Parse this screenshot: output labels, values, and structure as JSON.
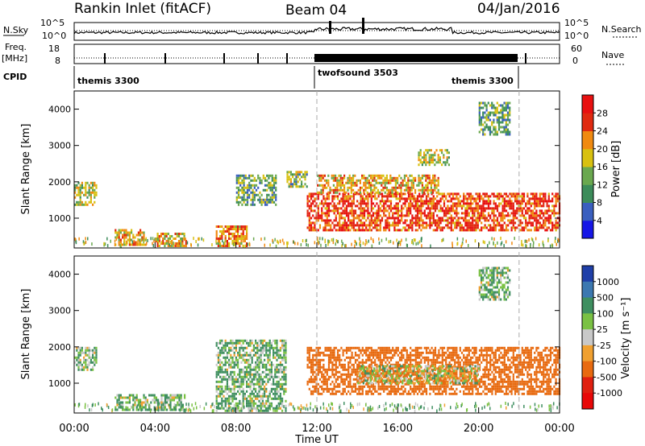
{
  "header": {
    "title": "Rankin Inlet (fitACF)",
    "beam": "Beam 04",
    "date": "04/Jan/2016"
  },
  "nsky_panel": {
    "left_label": "N.Sky",
    "left_ticks": [
      "10^5",
      "10^0"
    ],
    "right_label": "N.Search",
    "right_ticks": [
      "10^5",
      "10^0"
    ]
  },
  "freq_panel": {
    "left_label_1": "Freq.",
    "left_label_2": "[MHz]",
    "left_ticks": [
      "18",
      "8"
    ],
    "right_label": "Nave",
    "right_ticks": [
      "60",
      "0"
    ]
  },
  "cpid_panel": {
    "label": "CPID",
    "programs": [
      {
        "name": "themis 3300",
        "start_hour": 0,
        "end_hour": 12.0
      },
      {
        "name": "twofsound 3503",
        "start_hour": 12.0,
        "end_hour": 22.0
      },
      {
        "name": "themis 3300",
        "start_hour": 22.0,
        "end_hour": 24
      }
    ]
  },
  "power_panel": {
    "ylabel": "Slant Range [km]",
    "yticks": [
      "1000",
      "2000",
      "3000",
      "4000"
    ],
    "colorbar_label": "Power [dB]",
    "colorbar_ticks": [
      "4",
      "8",
      "12",
      "16",
      "20",
      "24",
      "28"
    ],
    "colorbar_colors": [
      "#1616e6",
      "#3a5fbf",
      "#3c8c5a",
      "#6aa84f",
      "#d8c010",
      "#f08a10",
      "#e02a10",
      "#e81010"
    ]
  },
  "velocity_panel": {
    "ylabel": "Slant Range [km]",
    "yticks": [
      "1000",
      "2000",
      "3000",
      "4000"
    ],
    "colorbar_label": "Velocity  [m s⁻¹]",
    "colorbar_ticks": [
      "1000",
      "500",
      "100",
      "25",
      "-25",
      "-100",
      "-500",
      "-1000"
    ],
    "colorbar_colors": [
      "#1f3fa8",
      "#3c78b0",
      "#3f8f60",
      "#7ac143",
      "#c8c8c8",
      "#f0a030",
      "#e86a10",
      "#e02010",
      "#e80808"
    ]
  },
  "x_axis": {
    "label": "Time UT",
    "ticks": [
      "00:00",
      "04:00",
      "08:00",
      "12:00",
      "16:00",
      "20:00",
      "00:00"
    ]
  },
  "chart_data": {
    "type": "heatmap",
    "x_range_hours": [
      0,
      24
    ],
    "y_range_km": [
      180,
      4500
    ],
    "grid": false,
    "power_patches": [
      {
        "t0": 0.0,
        "t1": 1.1,
        "r0": 1400,
        "r1": 2000,
        "value": 16
      },
      {
        "t0": 2.0,
        "t1": 3.5,
        "r0": 300,
        "r1": 700,
        "value": 20
      },
      {
        "t0": 4.0,
        "t1": 5.5,
        "r0": 250,
        "r1": 600,
        "value": 20
      },
      {
        "t0": 7.0,
        "t1": 8.5,
        "r0": 250,
        "r1": 800,
        "value": 22
      },
      {
        "t0": 8.0,
        "t1": 10.0,
        "r0": 1400,
        "r1": 2200,
        "value": 12
      },
      {
        "t0": 10.5,
        "t1": 11.5,
        "r0": 1900,
        "r1": 2300,
        "value": 14
      },
      {
        "t0": 11.5,
        "t1": 24.0,
        "r0": 700,
        "r1": 1700,
        "value": 26
      },
      {
        "t0": 12.0,
        "t1": 18.0,
        "r0": 1700,
        "r1": 2200,
        "value": 20
      },
      {
        "t0": 17.0,
        "t1": 18.5,
        "r0": 2500,
        "r1": 2900,
        "value": 16
      },
      {
        "t0": 20.0,
        "t1": 21.5,
        "r0": 3300,
        "r1": 4200,
        "value": 12
      }
    ],
    "velocity_patches": [
      {
        "t0": 0.0,
        "t1": 1.1,
        "r0": 1400,
        "r1": 2000,
        "value": 100
      },
      {
        "t0": 2.0,
        "t1": 5.5,
        "r0": 250,
        "r1": 700,
        "value": 100
      },
      {
        "t0": 7.0,
        "t1": 10.5,
        "r0": 250,
        "r1": 2200,
        "value": 100
      },
      {
        "t0": 11.5,
        "t1": 24.0,
        "r0": 700,
        "r1": 2000,
        "value": -300
      },
      {
        "t0": 14.0,
        "t1": 20.0,
        "r0": 1000,
        "r1": 1500,
        "value": -10
      },
      {
        "t0": 20.0,
        "t1": 21.5,
        "r0": 3300,
        "r1": 4200,
        "value": 100
      }
    ]
  }
}
